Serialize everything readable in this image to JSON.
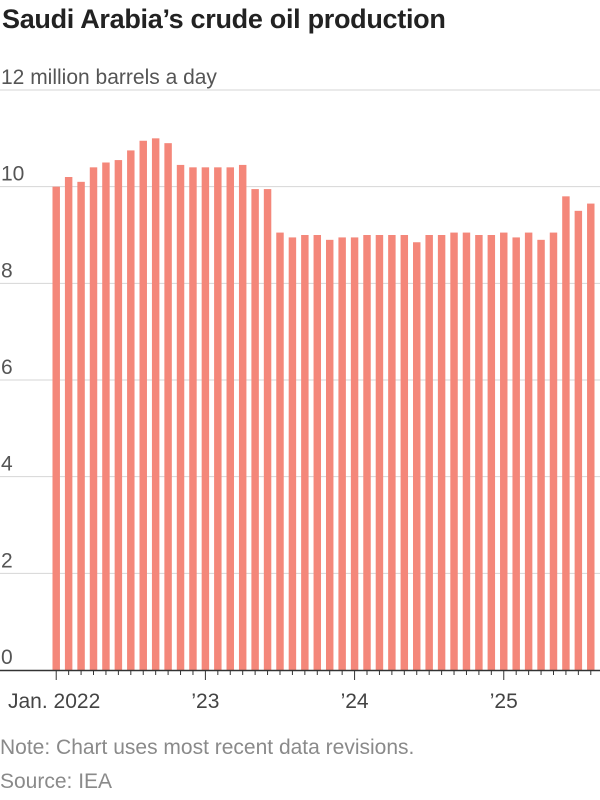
{
  "title": "Saudi Arabia’s crude oil production",
  "note": "Note: Chart uses most recent data revisions.",
  "source": "Source: IEA",
  "chart_data": {
    "type": "bar",
    "title": "Saudi Arabia’s crude oil production",
    "ylabel": "million barrels a day",
    "y_ticks": [
      {
        "value": 0,
        "label": "0"
      },
      {
        "value": 2,
        "label": "2"
      },
      {
        "value": 4,
        "label": "4"
      },
      {
        "value": 6,
        "label": "6"
      },
      {
        "value": 8,
        "label": "8"
      },
      {
        "value": 10,
        "label": "10"
      },
      {
        "value": 12,
        "label": "12 million barrels a day"
      }
    ],
    "ylim": [
      0,
      12
    ],
    "grid": true,
    "bar_color": "#f4877a",
    "x_ticks": [
      {
        "index": 0,
        "label": "Jan. 2022"
      },
      {
        "index": 12,
        "label": "’23"
      },
      {
        "index": 24,
        "label": "’24"
      },
      {
        "index": 36,
        "label": "’25"
      }
    ],
    "categories": [
      "2022-01",
      "2022-02",
      "2022-03",
      "2022-04",
      "2022-05",
      "2022-06",
      "2022-07",
      "2022-08",
      "2022-09",
      "2022-10",
      "2022-11",
      "2022-12",
      "2023-01",
      "2023-02",
      "2023-03",
      "2023-04",
      "2023-05",
      "2023-06",
      "2023-07",
      "2023-08",
      "2023-09",
      "2023-10",
      "2023-11",
      "2023-12",
      "2024-01",
      "2024-02",
      "2024-03",
      "2024-04",
      "2024-05",
      "2024-06",
      "2024-07",
      "2024-08",
      "2024-09",
      "2024-10",
      "2024-11",
      "2024-12",
      "2025-01",
      "2025-02",
      "2025-03",
      "2025-04",
      "2025-05",
      "2025-06",
      "2025-07",
      "2025-08"
    ],
    "values": [
      10.0,
      10.2,
      10.1,
      10.4,
      10.5,
      10.55,
      10.75,
      10.95,
      11.0,
      10.9,
      10.45,
      10.4,
      10.4,
      10.4,
      10.4,
      10.45,
      9.95,
      9.95,
      9.05,
      8.95,
      9.0,
      9.0,
      8.9,
      8.95,
      8.95,
      9.0,
      9.0,
      9.0,
      9.0,
      8.85,
      9.0,
      9.0,
      9.05,
      9.05,
      9.0,
      9.0,
      9.05,
      8.95,
      9.05,
      8.9,
      9.05,
      9.8,
      9.5,
      9.65
    ]
  }
}
